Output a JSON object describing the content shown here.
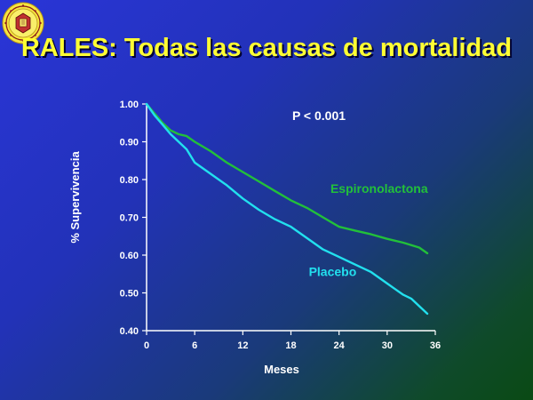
{
  "slide": {
    "title": "RALES: Todas las causas de mortalidad"
  },
  "chart_data": {
    "type": "line",
    "title": "",
    "xlabel": "Meses",
    "ylabel": "% Supervivencia",
    "xlim": [
      0,
      36
    ],
    "ylim": [
      0.4,
      1.0
    ],
    "x_ticks": [
      "0",
      "6",
      "12",
      "18",
      "24",
      "30",
      "36"
    ],
    "y_ticks": [
      "1.00",
      "0.90",
      "0.80",
      "0.70",
      "0.60",
      "0.50",
      "0.40"
    ],
    "grid": false,
    "annotation": "P < 0.001",
    "series": [
      {
        "name": "Espironolactona",
        "color": "#22c03a",
        "x": [
          0,
          1,
          2,
          3,
          4,
          5,
          6,
          8,
          10,
          12,
          14,
          16,
          18,
          20,
          22,
          24,
          26,
          28,
          30,
          32,
          34,
          35
        ],
        "y": [
          1.0,
          0.975,
          0.95,
          0.93,
          0.92,
          0.915,
          0.9,
          0.875,
          0.845,
          0.82,
          0.795,
          0.77,
          0.745,
          0.725,
          0.7,
          0.675,
          0.665,
          0.655,
          0.643,
          0.633,
          0.62,
          0.605
        ]
      },
      {
        "name": "Placebo",
        "color": "#22e0ee",
        "x": [
          0,
          1,
          2,
          3,
          4,
          5,
          6,
          8,
          10,
          12,
          14,
          16,
          18,
          20,
          22,
          24,
          26,
          28,
          30,
          31,
          32,
          33,
          34,
          35
        ],
        "y": [
          1.0,
          0.97,
          0.945,
          0.92,
          0.9,
          0.88,
          0.845,
          0.815,
          0.785,
          0.75,
          0.72,
          0.695,
          0.675,
          0.645,
          0.615,
          0.595,
          0.575,
          0.555,
          0.525,
          0.51,
          0.495,
          0.485,
          0.465,
          0.445
        ]
      }
    ],
    "labels": [
      {
        "series": "Espironolactona",
        "text": "Espironolactona",
        "x": 29,
        "y": 0.765
      },
      {
        "series": "Placebo",
        "text": "Placebo",
        "x": 23.2,
        "y": 0.545
      }
    ]
  }
}
